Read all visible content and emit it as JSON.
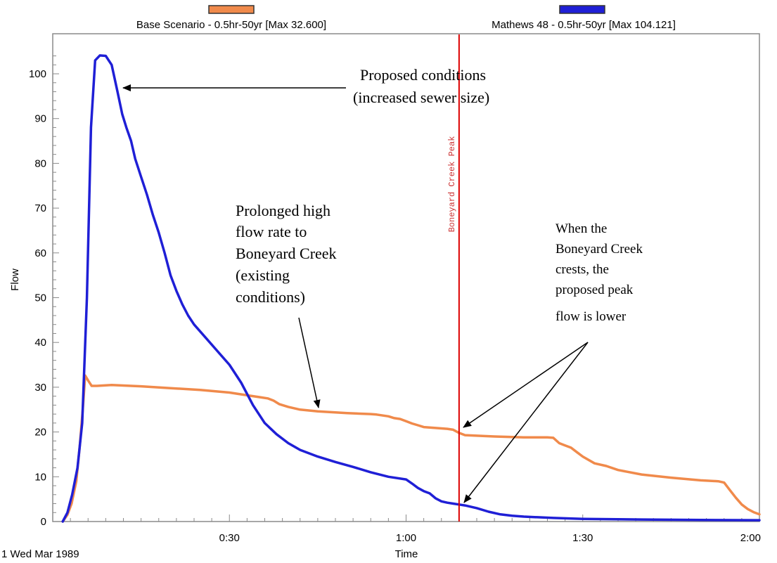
{
  "chart_data": {
    "type": "line",
    "xlabel": "Time",
    "ylabel": "Flow",
    "date_label": "1 Wed Mar 1989",
    "x_unit": "minutes",
    "xlim": [
      0,
      120
    ],
    "ylim": [
      0,
      108
    ],
    "x_ticks": [
      {
        "value": 30,
        "label": "0:30"
      },
      {
        "value": 60,
        "label": "1:00"
      },
      {
        "value": 90,
        "label": "1:30"
      },
      {
        "value": 120,
        "label": "2:00"
      }
    ],
    "y_ticks": [
      0,
      10,
      20,
      30,
      40,
      50,
      60,
      70,
      80,
      90,
      100
    ],
    "grid": false,
    "legend_position": "top",
    "series": [
      {
        "name": "Base Scenario - 0.5hr-50yr [Max 32.600]",
        "color": "#f08a4b",
        "x": [
          1.7,
          2.5,
          3.2,
          4.0,
          4.6,
          5.1,
          5.5,
          6.0,
          6.6,
          7.5,
          10,
          15,
          20,
          25,
          30,
          33,
          35,
          36.5,
          37.5,
          38.5,
          40,
          42,
          45,
          50,
          54,
          55,
          57,
          58,
          59,
          60,
          61,
          62,
          63,
          64,
          65,
          66,
          67,
          68,
          69,
          70,
          75,
          80,
          84,
          85,
          86,
          87,
          88,
          89,
          90,
          92,
          94,
          96,
          100,
          105,
          110,
          113,
          114,
          115,
          116,
          117,
          118,
          119,
          120
        ],
        "y": [
          0,
          1.5,
          4,
          9,
          17,
          25,
          32.6,
          31.5,
          30.3,
          30.3,
          30.5,
          30.2,
          29.8,
          29.4,
          28.8,
          28.2,
          27.8,
          27.5,
          27.0,
          26.2,
          25.6,
          25.0,
          24.6,
          24.2,
          24.0,
          23.9,
          23.5,
          23.1,
          22.9,
          22.4,
          21.9,
          21.5,
          21.1,
          21.0,
          20.9,
          20.8,
          20.7,
          20.5,
          19.8,
          19.3,
          19.0,
          18.8,
          18.8,
          18.7,
          17.5,
          17.0,
          16.5,
          15.5,
          14.5,
          13.0,
          12.4,
          11.5,
          10.5,
          9.8,
          9.2,
          9.0,
          8.7,
          7.0,
          5.3,
          3.8,
          2.8,
          2.1,
          1.6
        ]
      },
      {
        "name": "Mathews 48 - 0.5hr-50yr [Max 104.121]",
        "color": "#1f1fd6",
        "x": [
          1.7,
          2.5,
          3.3,
          4.2,
          5.0,
          5.8,
          6.5,
          7.2,
          8.0,
          9.0,
          10.0,
          11.0,
          11.8,
          12.5,
          13.3,
          14.0,
          15.0,
          16.0,
          17.0,
          18.0,
          19.0,
          20.0,
          21.0,
          22.0,
          23.0,
          24.0,
          26.0,
          28.0,
          30.0,
          32.0,
          34.0,
          36.0,
          38.0,
          40.0,
          42.0,
          45.0,
          48.0,
          51.0,
          54.0,
          57.0,
          60.0,
          61.0,
          62.0,
          63.0,
          64.0,
          65.0,
          66.0,
          67.0,
          68.0,
          69.0,
          70.0,
          72.0,
          74.0,
          76.0,
          78.0,
          80.0,
          85.0,
          90.0,
          100.0,
          110.0,
          120.0
        ],
        "y": [
          0,
          2,
          6,
          12,
          22,
          50,
          88,
          103,
          104.1,
          104,
          102,
          96,
          91,
          88,
          85,
          81,
          77,
          73,
          68.5,
          64.5,
          60,
          55,
          51.5,
          48.5,
          46,
          44,
          41,
          38,
          35,
          31,
          26,
          22,
          19.5,
          17.5,
          16,
          14.5,
          13.3,
          12.2,
          11,
          10,
          9.4,
          8.5,
          7.5,
          6.8,
          6.3,
          5.2,
          4.5,
          4.2,
          4.0,
          3.8,
          3.6,
          3.0,
          2.2,
          1.6,
          1.3,
          1.1,
          0.8,
          0.6,
          0.45,
          0.35,
          0.3
        ]
      }
    ],
    "vertical_marker": {
      "x": 69,
      "label": "Boneyard Creek Peak",
      "color": "#dd0000"
    },
    "annotations": [
      {
        "lines": [
          "Proposed conditions",
          "(increased sewer size)"
        ]
      },
      {
        "lines": [
          "Prolonged high",
          "flow rate to",
          "Boneyard Creek",
          "(existing",
          "conditions)"
        ]
      },
      {
        "lines": [
          "When the",
          "Boneyard Creek",
          "crests, the",
          "proposed peak",
          "flow is lower"
        ]
      }
    ]
  }
}
